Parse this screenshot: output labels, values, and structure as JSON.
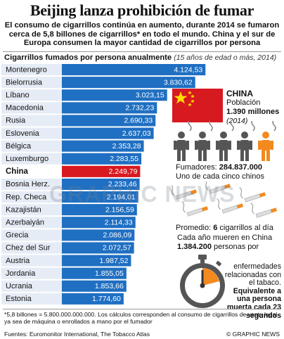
{
  "title": "Beijing lanza prohibición de fumar",
  "subtitle": "El consumo de cigarrillos continúa en aumento, durante 2014 se fumaron cerca de 5,8 billones de cigarrillos* en todo el mundo. China y el sur de Europa consumen la mayor cantidad de cigarrillos por persona",
  "chart_heading": "Cigarrillos fumados por persona anualmente",
  "chart_note": "(15 años de edad o más, 2014)",
  "colors": {
    "bar": "#1f6fc2",
    "bar_border": "#ffffff",
    "highlight": "#d71920",
    "label_row": "#e6ecf5"
  },
  "chart_data": {
    "type": "bar",
    "orientation": "horizontal",
    "title": "Cigarrillos fumados por persona anualmente",
    "categories": [
      "Montenegro",
      "Bielorrusia",
      "Líbano",
      "Macedonia",
      "Rusia",
      "Eslovenia",
      "Bélgica",
      "Luxemburgo",
      "China",
      "Bosnia Herz.",
      "Rep. Checa",
      "Kazajistán",
      "Azerbaiyán",
      "Grecia",
      "Chez del Sur",
      "Austria",
      "Jordania",
      "Ucrania",
      "Estonia"
    ],
    "values": [
      4124.53,
      3830.62,
      3023.15,
      2732.23,
      2690.33,
      2637.03,
      2353.28,
      2283.55,
      2249.79,
      2233.46,
      2194.01,
      2156.59,
      2114.33,
      2086.09,
      2072.57,
      1987.52,
      1855.05,
      1853.66,
      1774.6
    ],
    "value_labels": [
      "4.124,53",
      "3.830,62",
      "3.023,15",
      "2.732,23",
      "2.690,33",
      "2.637,03",
      "2.353,28",
      "2.283,55",
      "2.249,79",
      "2.233,46",
      "2.194,01",
      "2.156,59",
      "2.114,33",
      "2.086,09",
      "2.072,57",
      "1.987,52",
      "1.855,05",
      "1.853,66",
      "1.774,60"
    ],
    "highlight": "China",
    "xlim": [
      0,
      4200
    ]
  },
  "china_panel": {
    "name": "CHINA",
    "population_label": "Población",
    "population_value": "1.390 millones",
    "year": "(2014)",
    "smokers_label": "Fumadores:",
    "smokers_value": "284.837.000",
    "one_in_five": "Uno de cada cinco chinos",
    "avg_label": "Promedio:",
    "avg_value": "6",
    "avg_suffix": "cigarrillos al día",
    "deaths_intro": "Cada año mueren en China",
    "deaths_value": "1.384.200",
    "deaths_suffix": "personas por",
    "deaths_side_1": "enfermedades relacionadas con el tabaco.",
    "deaths_side_2": "Equivalente a una persona muerta cada 23 segundos",
    "people_total": 5,
    "people_smokers": 1
  },
  "watermark": "GRAPHIC NEWS",
  "footnote": "*5,8 billones = 5.800.000.000.000. Los cálculos corresponden al consumo de cigarrillos de venta legal ya sea de máquina o enrollados a mano por el fumador",
  "sources": "Fuentes: Euromonitor International, The Tobacco Atlas",
  "copyright": "© GRAPHIC NEWS"
}
